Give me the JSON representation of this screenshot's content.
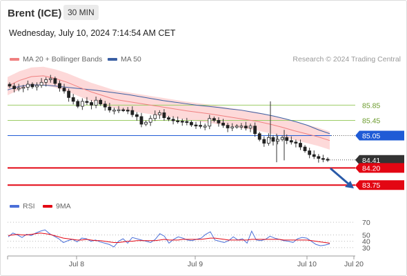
{
  "header": {
    "instrument": "Brent (ICE)",
    "timeframe": "30 MIN",
    "datetime": "Wednesday, July 10, 2024 7:14:54 AM CET"
  },
  "legend": {
    "ma20_label": "MA 20 + Bollinger Bands",
    "ma50_label": "MA 50",
    "credit": "Research © 2024 Trading Central",
    "rsi_label": "RSI",
    "rsi9_label": "9MA"
  },
  "colors": {
    "ma20": "#f08080",
    "ma50": "#3a5fa3",
    "bands_fill": "#fdd9d9",
    "resistance": "#9ccc65",
    "pivot": "#1f5bd6",
    "support": "#e30613",
    "last": "#333333",
    "arrow": "#2a5aa8",
    "rsi": "#4b6fd8",
    "rsi9": "#e30613"
  },
  "chart_data": [
    {
      "type": "candlestick",
      "title": "Brent (ICE)",
      "timeframe": "30 MIN",
      "x_ticks": [
        "Jul 8",
        "Jul 9",
        "Jul 10",
        "Jul 20"
      ],
      "ylim": [
        83.5,
        86.8
      ],
      "levels": [
        {
          "value": 85.85,
          "label": "85.85",
          "kind": "resistance"
        },
        {
          "value": 85.45,
          "label": "85.45",
          "kind": "resistance"
        },
        {
          "value": 85.05,
          "label": "85.05",
          "kind": "pivot"
        },
        {
          "value": 84.41,
          "label": "84.41",
          "kind": "last"
        },
        {
          "value": 84.2,
          "label": "84.20",
          "kind": "support"
        },
        {
          "value": 83.75,
          "label": "83.75",
          "kind": "support"
        }
      ],
      "last_price": 84.41,
      "forecast": "down toward 83.75",
      "series": [
        {
          "name": "MA 20 + Bollinger Bands",
          "values": [
            86.35,
            86.5,
            86.6,
            86.62,
            86.55,
            86.45,
            86.32,
            86.2,
            86.1,
            86.0,
            85.95,
            85.9,
            85.85,
            85.8,
            85.75,
            85.7,
            85.66,
            85.62,
            85.57,
            85.52,
            85.47,
            85.42,
            85.35,
            85.27,
            85.18,
            85.1,
            85.02,
            84.92
          ]
        },
        {
          "name": "MA 50",
          "values": [
            86.25,
            86.34,
            86.38,
            86.38,
            86.36,
            86.33,
            86.3,
            86.27,
            86.24,
            86.2,
            86.16,
            86.12,
            86.07,
            86.02,
            85.97,
            85.93,
            85.89,
            85.85,
            85.82,
            85.79,
            85.75,
            85.72,
            85.67,
            85.62,
            85.56,
            85.49,
            85.41,
            85.32,
            85.2,
            85.1
          ]
        }
      ],
      "closes": [
        86.35,
        86.28,
        86.3,
        86.32,
        86.4,
        86.33,
        86.37,
        86.45,
        86.52,
        86.55,
        86.42,
        86.3,
        86.22,
        86.05,
        85.95,
        85.82,
        85.95,
        85.92,
        85.85,
        85.98,
        85.88,
        85.8,
        85.72,
        85.72,
        85.73,
        85.72,
        85.71,
        85.6,
        85.55,
        85.35,
        85.4,
        85.5,
        85.6,
        85.65,
        85.52,
        85.48,
        85.44,
        85.43,
        85.42,
        85.4,
        85.33,
        85.32,
        85.3,
        85.3,
        85.5,
        85.45,
        85.38,
        85.32,
        85.25,
        85.28,
        85.3,
        85.3,
        85.25,
        85.3,
        85.1,
        84.95,
        84.85,
        85.0,
        84.9,
        84.95,
        85.0,
        84.92,
        84.88,
        84.85,
        84.75,
        84.65,
        84.55,
        84.5,
        84.45,
        84.43,
        84.41
      ]
    },
    {
      "type": "line",
      "ylim": [
        20,
        80
      ],
      "y_ticks": [
        70,
        50,
        40,
        30
      ],
      "series": [
        {
          "name": "RSI",
          "values": [
            47,
            53,
            50,
            46,
            51,
            49,
            53,
            56,
            58,
            52,
            48,
            44,
            38,
            41,
            43,
            39,
            45,
            44,
            40,
            42,
            39,
            37,
            35,
            31,
            40,
            44,
            37,
            46,
            44,
            42,
            40,
            38,
            43,
            52,
            48,
            37,
            43,
            47,
            45,
            42,
            41,
            43,
            45,
            51,
            55,
            42,
            40,
            38,
            41,
            47,
            42,
            44,
            37,
            56,
            42,
            41,
            43,
            48,
            45,
            43,
            41,
            40,
            38,
            44,
            46,
            45,
            40,
            35,
            33,
            34,
            36
          ]
        },
        {
          "name": "9MA",
          "values": [
            49,
            50,
            51,
            50,
            50,
            51,
            52,
            53,
            52,
            51,
            49,
            47,
            45,
            44,
            43,
            42,
            42,
            43,
            42,
            41,
            41,
            40,
            39,
            38,
            38,
            39,
            40,
            40,
            41,
            41,
            41,
            41,
            41,
            42,
            43,
            42,
            42,
            42,
            43,
            43,
            43,
            43,
            43,
            44,
            45,
            45,
            44,
            43,
            42,
            42,
            42,
            42,
            42,
            43,
            43,
            43,
            43,
            43,
            43,
            43,
            42,
            42,
            42,
            42,
            42,
            42,
            41,
            40,
            39,
            38,
            37
          ]
        }
      ]
    }
  ]
}
